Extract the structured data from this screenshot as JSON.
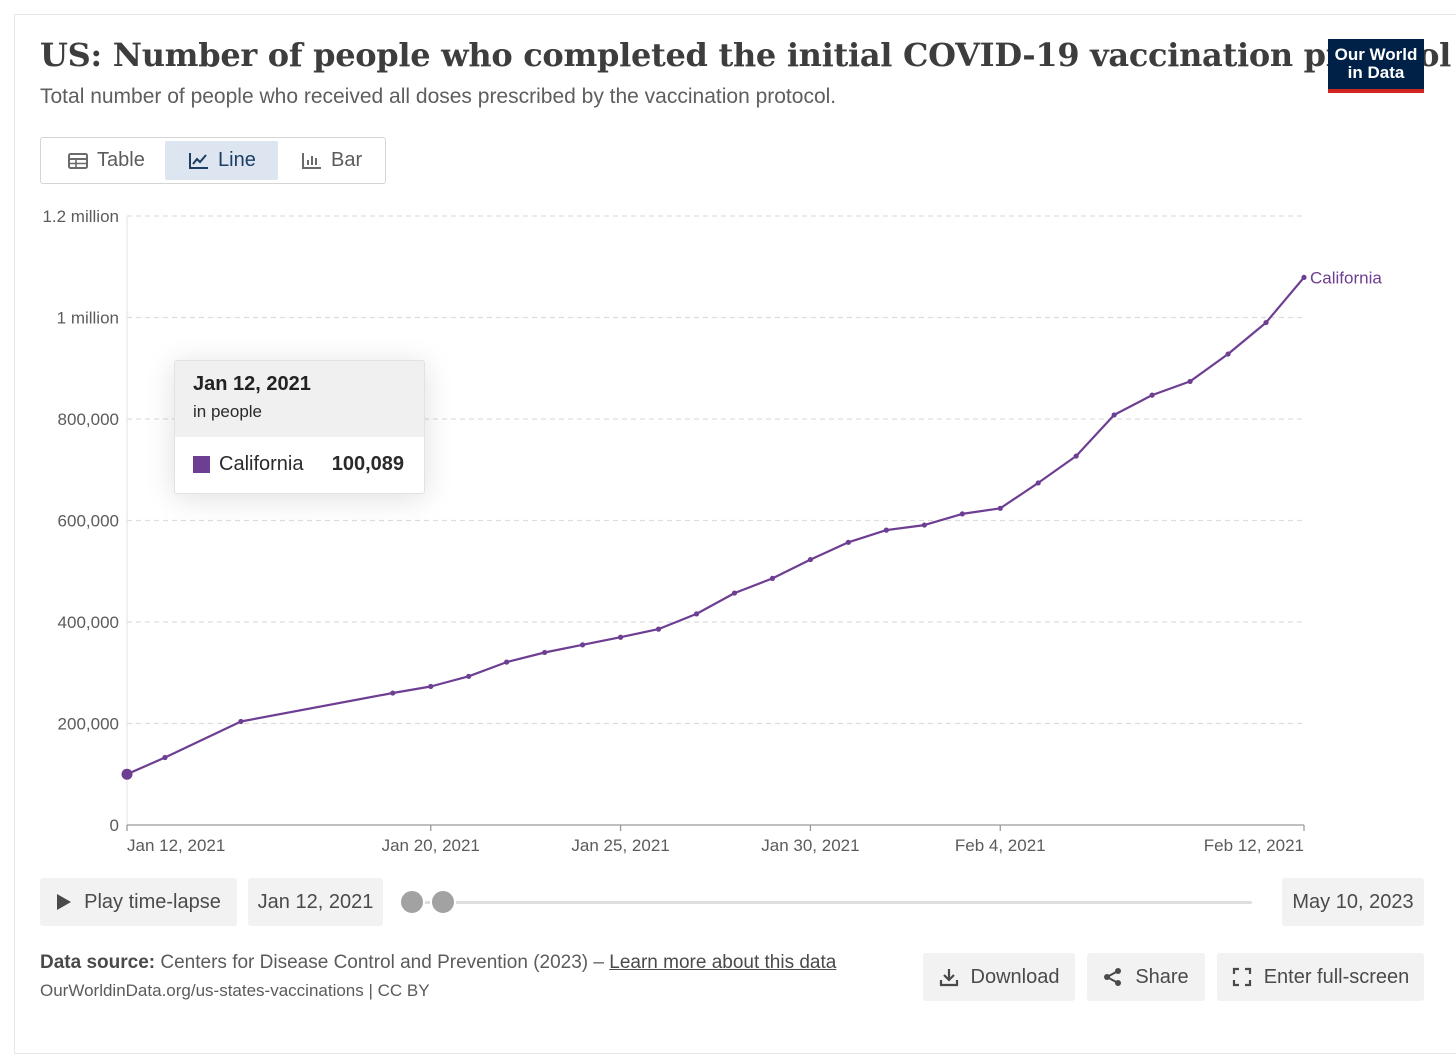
{
  "header": {
    "title": "US: Number of people who completed the initial COVID-19 vaccination protocol",
    "subtitle": "Total number of people who received all doses prescribed by the vaccination protocol.",
    "logo_line1": "Our World",
    "logo_line2": "in Data"
  },
  "tabs": [
    {
      "label": "Table",
      "icon": "table-icon"
    },
    {
      "label": "Line",
      "icon": "line-chart-icon",
      "active": true
    },
    {
      "label": "Bar",
      "icon": "bar-chart-icon"
    }
  ],
  "tooltip": {
    "date": "Jan 12, 2021",
    "unit": "in people",
    "series": "California",
    "value": "100,089"
  },
  "timeline": {
    "play_label": "Play time-lapse",
    "start_date": "Jan 12, 2021",
    "end_date": "May 10, 2023"
  },
  "footer": {
    "source_label": "Data source:",
    "source_text": "Centers for Disease Control and Prevention (2023) –",
    "learn_more": "Learn more about this data",
    "credit": "OurWorldinData.org/us-states-vaccinations | CC BY",
    "download_label": "Download",
    "share_label": "Share",
    "fullscreen_label": "Enter full-screen"
  },
  "colors": {
    "series": "#6d3e91",
    "axis": "#9a9a9a",
    "gridline": "#dddddd"
  },
  "chart_data": {
    "type": "line",
    "title": "US: Number of people who completed the initial COVID-19 vaccination protocol",
    "ylim": [
      0,
      1200000
    ],
    "yticks": [
      {
        "value": 0,
        "label": "0"
      },
      {
        "value": 200000,
        "label": "200,000"
      },
      {
        "value": 400000,
        "label": "400,000"
      },
      {
        "value": 600000,
        "label": "600,000"
      },
      {
        "value": 800000,
        "label": "800,000"
      },
      {
        "value": 1000000,
        "label": "1 million"
      },
      {
        "value": 1200000,
        "label": "1.2 million"
      }
    ],
    "xlim": [
      "2021-01-12",
      "2021-02-12"
    ],
    "xticks": [
      {
        "date": "2021-01-12",
        "label": "Jan 12, 2021"
      },
      {
        "date": "2021-01-20",
        "label": "Jan 20, 2021"
      },
      {
        "date": "2021-01-25",
        "label": "Jan 25, 2021"
      },
      {
        "date": "2021-01-30",
        "label": "Jan 30, 2021"
      },
      {
        "date": "2021-02-04",
        "label": "Feb 4, 2021"
      },
      {
        "date": "2021-02-12",
        "label": "Feb 12, 2021"
      }
    ],
    "grid": true,
    "highlight_date": "2021-01-12",
    "series": [
      {
        "name": "California",
        "points": [
          {
            "date": "2021-01-12",
            "value": 100089
          },
          {
            "date": "2021-01-13",
            "value": 133000
          },
          {
            "date": "2021-01-15",
            "value": 204000
          },
          {
            "date": "2021-01-19",
            "value": 260000
          },
          {
            "date": "2021-01-20",
            "value": 273000
          },
          {
            "date": "2021-01-21",
            "value": 293000
          },
          {
            "date": "2021-01-22",
            "value": 321000
          },
          {
            "date": "2021-01-23",
            "value": 340000
          },
          {
            "date": "2021-01-24",
            "value": 355000
          },
          {
            "date": "2021-01-25",
            "value": 370000
          },
          {
            "date": "2021-01-26",
            "value": 386000
          },
          {
            "date": "2021-01-27",
            "value": 416000
          },
          {
            "date": "2021-01-28",
            "value": 457000
          },
          {
            "date": "2021-01-29",
            "value": 486000
          },
          {
            "date": "2021-01-30",
            "value": 523000
          },
          {
            "date": "2021-01-31",
            "value": 557000
          },
          {
            "date": "2021-02-01",
            "value": 581000
          },
          {
            "date": "2021-02-02",
            "value": 591000
          },
          {
            "date": "2021-02-03",
            "value": 613000
          },
          {
            "date": "2021-02-04",
            "value": 624000
          },
          {
            "date": "2021-02-05",
            "value": 674000
          },
          {
            "date": "2021-02-06",
            "value": 727000
          },
          {
            "date": "2021-02-07",
            "value": 808000
          },
          {
            "date": "2021-02-08",
            "value": 847000
          },
          {
            "date": "2021-02-09",
            "value": 874000
          },
          {
            "date": "2021-02-10",
            "value": 928000
          },
          {
            "date": "2021-02-11",
            "value": 990000
          },
          {
            "date": "2021-02-12",
            "value": 1079000
          }
        ]
      }
    ]
  }
}
